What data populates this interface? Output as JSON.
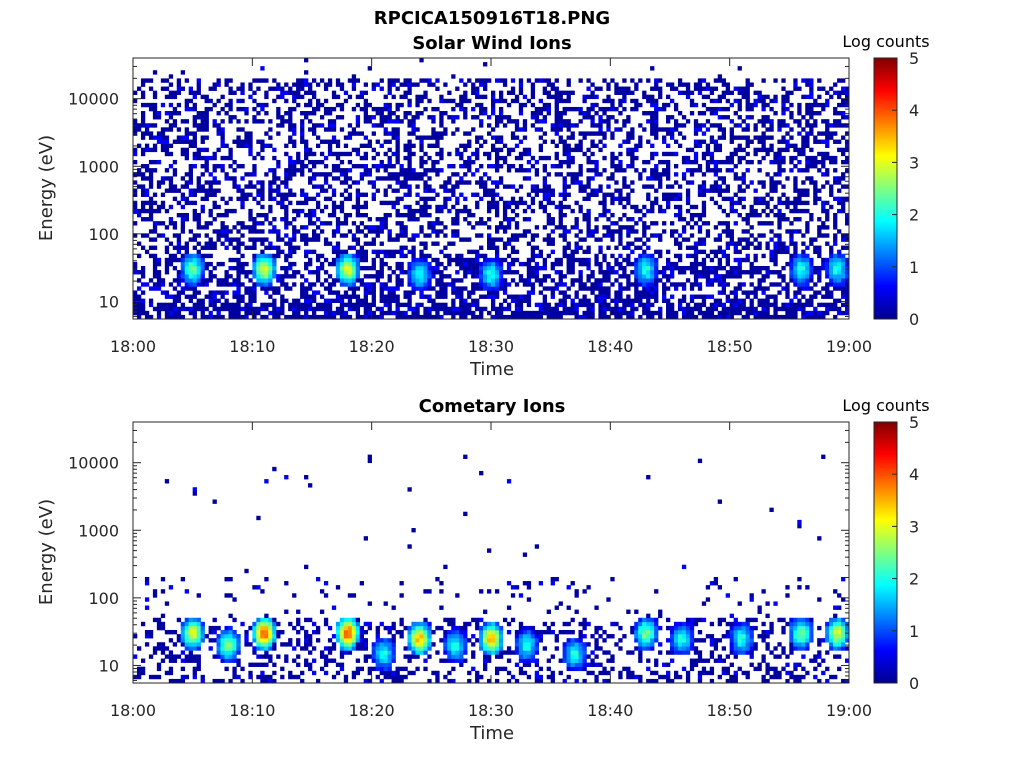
{
  "figure_title": "RPCICA150916T18.PNG",
  "colors": {
    "colormap": [
      "#00008f",
      "#0000ff",
      "#00ffff",
      "#ffff00",
      "#ff0000",
      "#800000"
    ],
    "axis": "#262626",
    "background": "#ffffff"
  },
  "chart_data": [
    {
      "type": "heatmap",
      "title": "Solar Wind Ions",
      "xlabel": "Time",
      "ylabel": "Energy (eV)",
      "x_range": [
        "18:00",
        "19:00"
      ],
      "x_ticks": [
        "18:00",
        "18:10",
        "18:20",
        "18:30",
        "18:40",
        "18:50",
        "19:00"
      ],
      "y_scale": "log",
      "y_range": [
        5.5,
        40000
      ],
      "y_ticks": [
        10,
        100,
        1000,
        10000
      ],
      "y_tick_labels": [
        "10",
        "100",
        "1000",
        "10000"
      ],
      "colorbar": {
        "label": "Log counts",
        "range": [
          0,
          5
        ],
        "ticks": [
          "0",
          "1",
          "2",
          "3",
          "4",
          "5"
        ]
      },
      "distribution": "dense low counts (0-1) across 10 eV - 20000 eV; sparse points to ~40000 eV",
      "features": [
        {
          "time": "18:05",
          "energy_eV": 30,
          "log_counts": 2.4
        },
        {
          "time": "18:11",
          "energy_eV": 30,
          "log_counts": 3.0
        },
        {
          "time": "18:18",
          "energy_eV": 30,
          "log_counts": 3.0
        },
        {
          "time": "18:24",
          "energy_eV": 25,
          "log_counts": 2.0
        },
        {
          "time": "18:30",
          "energy_eV": 25,
          "log_counts": 2.0
        },
        {
          "time": "18:43",
          "energy_eV": 30,
          "log_counts": 2.0
        },
        {
          "time": "18:56",
          "energy_eV": 30,
          "log_counts": 2.0
        },
        {
          "time": "18:59",
          "energy_eV": 30,
          "log_counts": 2.0
        }
      ]
    },
    {
      "type": "heatmap",
      "title": "Cometary Ions",
      "xlabel": "Time",
      "ylabel": "Energy (eV)",
      "x_range": [
        "18:00",
        "19:00"
      ],
      "x_ticks": [
        "18:00",
        "18:10",
        "18:20",
        "18:30",
        "18:40",
        "18:50",
        "19:00"
      ],
      "y_scale": "log",
      "y_range": [
        5.5,
        40000
      ],
      "y_ticks": [
        10,
        100,
        1000,
        10000
      ],
      "y_tick_labels": [
        "10",
        "100",
        "1000",
        "10000"
      ],
      "colorbar": {
        "label": "Log counts",
        "range": [
          0,
          5
        ],
        "ticks": [
          "0",
          "1",
          "2",
          "3",
          "4",
          "5"
        ]
      },
      "distribution": "counts mostly below 200 eV; sparse points up to ~10000 eV",
      "features": [
        {
          "time": "18:05",
          "energy_eV": 30,
          "log_counts": 3.0
        },
        {
          "time": "18:08",
          "energy_eV": 20,
          "log_counts": 2.5
        },
        {
          "time": "18:11",
          "energy_eV": 30,
          "log_counts": 4.0
        },
        {
          "time": "18:18",
          "energy_eV": 30,
          "log_counts": 4.0
        },
        {
          "time": "18:21",
          "energy_eV": 15,
          "log_counts": 2.0
        },
        {
          "time": "18:24",
          "energy_eV": 25,
          "log_counts": 3.5
        },
        {
          "time": "18:27",
          "energy_eV": 20,
          "log_counts": 2.0
        },
        {
          "time": "18:30",
          "energy_eV": 25,
          "log_counts": 3.5
        },
        {
          "time": "18:33",
          "energy_eV": 20,
          "log_counts": 2.0
        },
        {
          "time": "18:37",
          "energy_eV": 15,
          "log_counts": 2.0
        },
        {
          "time": "18:43",
          "energy_eV": 30,
          "log_counts": 2.5
        },
        {
          "time": "18:46",
          "energy_eV": 25,
          "log_counts": 2.0
        },
        {
          "time": "18:51",
          "energy_eV": 25,
          "log_counts": 2.0
        },
        {
          "time": "18:56",
          "energy_eV": 30,
          "log_counts": 2.5
        },
        {
          "time": "18:59",
          "energy_eV": 30,
          "log_counts": 3.0
        }
      ]
    }
  ]
}
